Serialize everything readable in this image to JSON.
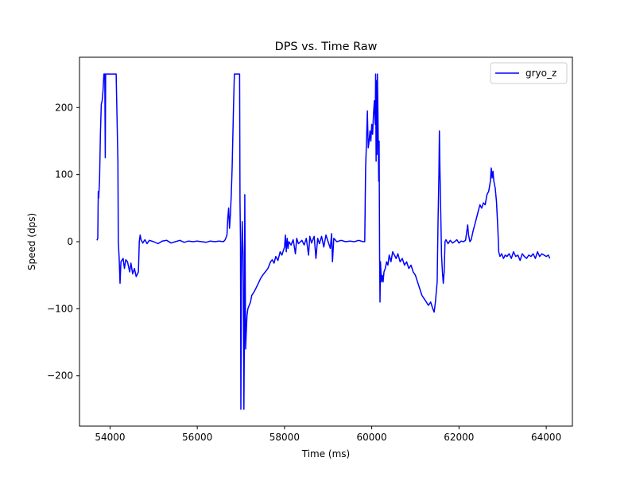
{
  "chart_data": {
    "type": "line",
    "title": "DPS vs. Time Raw",
    "xlabel": "Time (ms)",
    "ylabel": "Speed (dps)",
    "xlim": [
      53300,
      64600
    ],
    "ylim": [
      -275,
      275
    ],
    "xticks": [
      54000,
      56000,
      58000,
      60000,
      62000,
      64000
    ],
    "yticks": [
      -200,
      -100,
      0,
      100,
      200
    ],
    "grid": false,
    "legend_position": "top-right",
    "series": [
      {
        "name": "gryo_z",
        "color": "#0000ff",
        "points": [
          [
            53700,
            2
          ],
          [
            53720,
            5
          ],
          [
            53730,
            75
          ],
          [
            53740,
            65
          ],
          [
            53760,
            90
          ],
          [
            53780,
            160
          ],
          [
            53800,
            205
          ],
          [
            53820,
            210
          ],
          [
            53840,
            225
          ],
          [
            53860,
            250
          ],
          [
            53880,
            250
          ],
          [
            53890,
            125
          ],
          [
            53900,
            250
          ],
          [
            54000,
            250
          ],
          [
            54100,
            250
          ],
          [
            54140,
            250
          ],
          [
            54160,
            185
          ],
          [
            54180,
            120
          ],
          [
            54190,
            0
          ],
          [
            54210,
            -25
          ],
          [
            54230,
            -62
          ],
          [
            54250,
            -30
          ],
          [
            54300,
            -25
          ],
          [
            54330,
            -40
          ],
          [
            54360,
            -27
          ],
          [
            54400,
            -30
          ],
          [
            54450,
            -45
          ],
          [
            54480,
            -32
          ],
          [
            54520,
            -48
          ],
          [
            54560,
            -40
          ],
          [
            54600,
            -52
          ],
          [
            54650,
            -45
          ],
          [
            54670,
            0
          ],
          [
            54690,
            10
          ],
          [
            54710,
            3
          ],
          [
            54750,
            -2
          ],
          [
            54800,
            3
          ],
          [
            54850,
            -3
          ],
          [
            54900,
            2
          ],
          [
            55000,
            0
          ],
          [
            55100,
            -3
          ],
          [
            55200,
            1
          ],
          [
            55300,
            2
          ],
          [
            55400,
            -2
          ],
          [
            55500,
            0
          ],
          [
            55600,
            2
          ],
          [
            55700,
            -1
          ],
          [
            55800,
            1
          ],
          [
            55900,
            0
          ],
          [
            56000,
            1
          ],
          [
            56100,
            0
          ],
          [
            56200,
            -1
          ],
          [
            56300,
            1
          ],
          [
            56400,
            0
          ],
          [
            56500,
            1
          ],
          [
            56600,
            0
          ],
          [
            56640,
            3
          ],
          [
            56680,
            10
          ],
          [
            56700,
            35
          ],
          [
            56720,
            50
          ],
          [
            56740,
            20
          ],
          [
            56760,
            40
          ],
          [
            56780,
            70
          ],
          [
            56800,
            110
          ],
          [
            56830,
            200
          ],
          [
            56850,
            250
          ],
          [
            56900,
            250
          ],
          [
            56970,
            250
          ],
          [
            56980,
            60
          ],
          [
            56990,
            0
          ],
          [
            57000,
            -250
          ],
          [
            57010,
            -60
          ],
          [
            57030,
            30
          ],
          [
            57050,
            -20
          ],
          [
            57070,
            -250
          ],
          [
            57080,
            -140
          ],
          [
            57090,
            70
          ],
          [
            57100,
            -60
          ],
          [
            57110,
            -160
          ],
          [
            57120,
            -140
          ],
          [
            57140,
            -110
          ],
          [
            57160,
            -100
          ],
          [
            57190,
            -95
          ],
          [
            57220,
            -90
          ],
          [
            57250,
            -80
          ],
          [
            57300,
            -75
          ],
          [
            57340,
            -70
          ],
          [
            57400,
            -62
          ],
          [
            57450,
            -55
          ],
          [
            57500,
            -50
          ],
          [
            57560,
            -45
          ],
          [
            57620,
            -40
          ],
          [
            57680,
            -30
          ],
          [
            57720,
            -27
          ],
          [
            57760,
            -32
          ],
          [
            57800,
            -22
          ],
          [
            57850,
            -28
          ],
          [
            57900,
            -15
          ],
          [
            57940,
            -20
          ],
          [
            58000,
            -8
          ],
          [
            58020,
            10
          ],
          [
            58040,
            -15
          ],
          [
            58060,
            5
          ],
          [
            58080,
            -10
          ],
          [
            58100,
            0
          ],
          [
            58150,
            -5
          ],
          [
            58200,
            3
          ],
          [
            58250,
            -18
          ],
          [
            58280,
            5
          ],
          [
            58320,
            -3
          ],
          [
            58400,
            2
          ],
          [
            58450,
            -5
          ],
          [
            58500,
            5
          ],
          [
            58550,
            -20
          ],
          [
            58580,
            8
          ],
          [
            58620,
            -2
          ],
          [
            58680,
            8
          ],
          [
            58720,
            -25
          ],
          [
            58760,
            5
          ],
          [
            58800,
            -3
          ],
          [
            58850,
            8
          ],
          [
            58900,
            -8
          ],
          [
            58950,
            10
          ],
          [
            59000,
            0
          ],
          [
            59050,
            -10
          ],
          [
            59080,
            12
          ],
          [
            59100,
            -30
          ],
          [
            59130,
            5
          ],
          [
            59200,
            0
          ],
          [
            59300,
            2
          ],
          [
            59400,
            0
          ],
          [
            59500,
            1
          ],
          [
            59600,
            0
          ],
          [
            59700,
            2
          ],
          [
            59800,
            0
          ],
          [
            59840,
            0
          ],
          [
            59860,
            110
          ],
          [
            59880,
            150
          ],
          [
            59900,
            195
          ],
          [
            59920,
            140
          ],
          [
            59940,
            150
          ],
          [
            59960,
            165
          ],
          [
            59980,
            150
          ],
          [
            60000,
            175
          ],
          [
            60020,
            160
          ],
          [
            60040,
            190
          ],
          [
            60060,
            210
          ],
          [
            60080,
            175
          ],
          [
            60090,
            250
          ],
          [
            60100,
            120
          ],
          [
            60110,
            240
          ],
          [
            60120,
            130
          ],
          [
            60130,
            250
          ],
          [
            60140,
            200
          ],
          [
            60150,
            150
          ],
          [
            60160,
            90
          ],
          [
            60170,
            150
          ],
          [
            60180,
            -20
          ],
          [
            60190,
            -90
          ],
          [
            60200,
            -30
          ],
          [
            60220,
            -60
          ],
          [
            60240,
            -50
          ],
          [
            60260,
            -60
          ],
          [
            60280,
            -45
          ],
          [
            60310,
            -40
          ],
          [
            60340,
            -30
          ],
          [
            60370,
            -35
          ],
          [
            60400,
            -20
          ],
          [
            60440,
            -30
          ],
          [
            60480,
            -15
          ],
          [
            60520,
            -20
          ],
          [
            60560,
            -25
          ],
          [
            60600,
            -18
          ],
          [
            60650,
            -30
          ],
          [
            60700,
            -25
          ],
          [
            60750,
            -35
          ],
          [
            60800,
            -30
          ],
          [
            60850,
            -40
          ],
          [
            60900,
            -35
          ],
          [
            60950,
            -45
          ],
          [
            61000,
            -50
          ],
          [
            61050,
            -60
          ],
          [
            61100,
            -70
          ],
          [
            61150,
            -80
          ],
          [
            61200,
            -85
          ],
          [
            61250,
            -90
          ],
          [
            61300,
            -95
          ],
          [
            61350,
            -90
          ],
          [
            61400,
            -100
          ],
          [
            61430,
            -105
          ],
          [
            61460,
            -90
          ],
          [
            61500,
            -60
          ],
          [
            61520,
            30
          ],
          [
            61540,
            100
          ],
          [
            61550,
            165
          ],
          [
            61560,
            120
          ],
          [
            61580,
            50
          ],
          [
            61600,
            -20
          ],
          [
            61620,
            -45
          ],
          [
            61640,
            -62
          ],
          [
            61660,
            -45
          ],
          [
            61680,
            0
          ],
          [
            61700,
            3
          ],
          [
            61750,
            -3
          ],
          [
            61800,
            2
          ],
          [
            61850,
            -2
          ],
          [
            61900,
            0
          ],
          [
            61950,
            3
          ],
          [
            62000,
            -2
          ],
          [
            62050,
            1
          ],
          [
            62100,
            0
          ],
          [
            62150,
            2
          ],
          [
            62200,
            25
          ],
          [
            62220,
            10
          ],
          [
            62250,
            0
          ],
          [
            62280,
            3
          ],
          [
            62320,
            15
          ],
          [
            62360,
            25
          ],
          [
            62400,
            35
          ],
          [
            62440,
            45
          ],
          [
            62480,
            55
          ],
          [
            62520,
            50
          ],
          [
            62560,
            58
          ],
          [
            62600,
            55
          ],
          [
            62640,
            70
          ],
          [
            62680,
            75
          ],
          [
            62720,
            90
          ],
          [
            62740,
            110
          ],
          [
            62760,
            95
          ],
          [
            62780,
            105
          ],
          [
            62800,
            90
          ],
          [
            62830,
            80
          ],
          [
            62860,
            60
          ],
          [
            62890,
            20
          ],
          [
            62910,
            -15
          ],
          [
            62940,
            -22
          ],
          [
            62980,
            -18
          ],
          [
            63020,
            -25
          ],
          [
            63060,
            -20
          ],
          [
            63100,
            -22
          ],
          [
            63150,
            -18
          ],
          [
            63200,
            -25
          ],
          [
            63250,
            -15
          ],
          [
            63300,
            -22
          ],
          [
            63350,
            -20
          ],
          [
            63400,
            -28
          ],
          [
            63450,
            -18
          ],
          [
            63500,
            -22
          ],
          [
            63550,
            -25
          ],
          [
            63600,
            -20
          ],
          [
            63650,
            -22
          ],
          [
            63700,
            -18
          ],
          [
            63750,
            -25
          ],
          [
            63800,
            -15
          ],
          [
            63850,
            -22
          ],
          [
            63900,
            -18
          ],
          [
            63950,
            -20
          ],
          [
            64000,
            -22
          ],
          [
            64050,
            -20
          ],
          [
            64080,
            -25
          ]
        ]
      }
    ]
  }
}
